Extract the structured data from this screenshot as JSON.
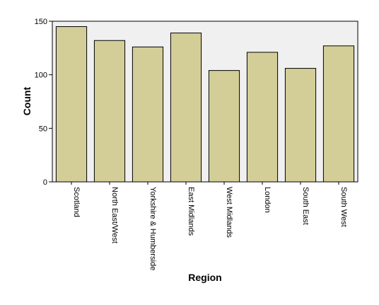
{
  "chart_data": {
    "type": "bar",
    "title": "",
    "xlabel": "Region",
    "ylabel": "Count",
    "categories": [
      "Scotland",
      "North East/West",
      "Yorkshire & Humberside",
      "East Midlands",
      "West Midlands",
      "London",
      "South East",
      "South West"
    ],
    "values": [
      145,
      132,
      126,
      139,
      104,
      121,
      106,
      127
    ],
    "ylim": [
      0,
      150
    ],
    "yticks": [
      0,
      50,
      100,
      150
    ],
    "grid": false,
    "legend": "none",
    "colors": {
      "bar_fill": "#d3ce98",
      "bar_stroke": "#000000",
      "plot_background": "#f0f0f0"
    }
  }
}
